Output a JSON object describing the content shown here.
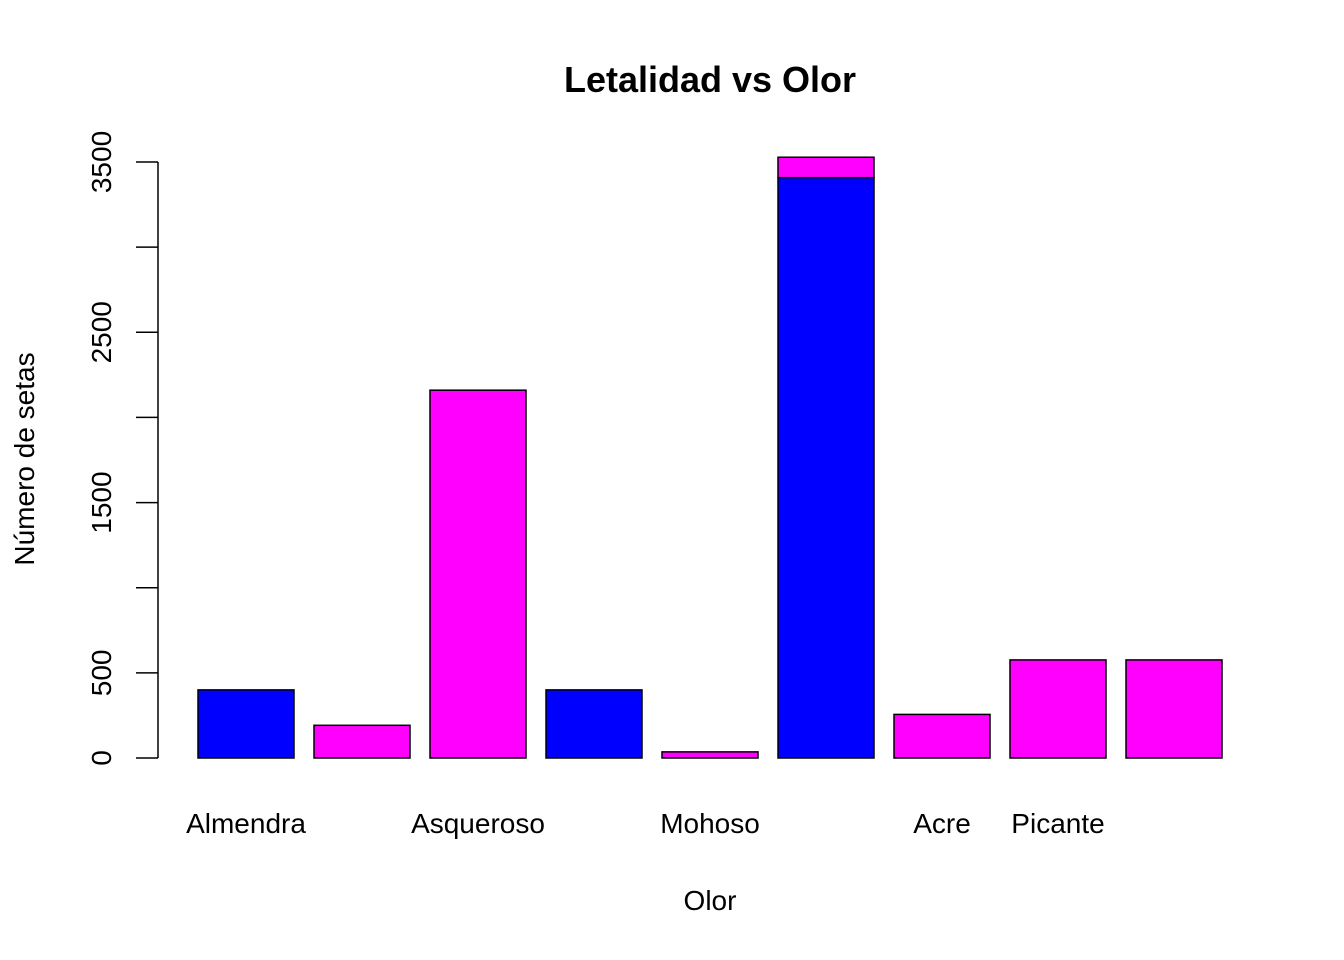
{
  "chart_data": {
    "type": "bar",
    "stacked": true,
    "title": "Letalidad vs Olor",
    "xlabel": "Olor",
    "ylabel": "Número de setas",
    "ylim": [
      0,
      3500
    ],
    "yticks": [
      0,
      500,
      1500,
      2500,
      3500
    ],
    "grid": false,
    "legend": "none",
    "bars": 9,
    "category_labels": [
      {
        "bar": 0,
        "text": "Almendra"
      },
      {
        "bar": 2,
        "text": "Asqueroso"
      },
      {
        "bar": 4,
        "text": "Mohoso"
      },
      {
        "bar": 6,
        "text": "Acre"
      },
      {
        "bar": 7,
        "text": "Picante"
      }
    ],
    "series": [
      {
        "color": "#0000FF",
        "values": [
          400,
          0,
          0,
          400,
          0,
          3408,
          0,
          0,
          0
        ]
      },
      {
        "color": "#FF00FF",
        "values": [
          0,
          192,
          2160,
          0,
          36,
          120,
          256,
          576,
          576
        ]
      }
    ]
  }
}
